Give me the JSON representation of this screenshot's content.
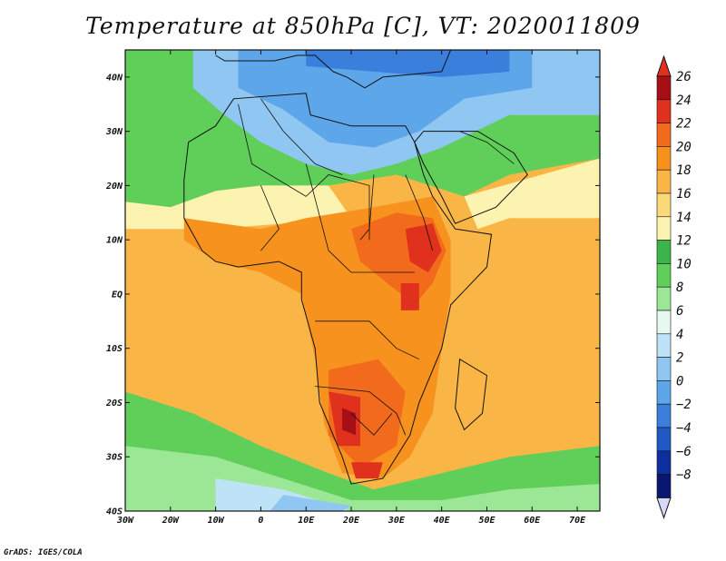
{
  "title": "Temperature at 850hPa [C], VT: 2020011809",
  "credit": "GrADS: IGES/COLA",
  "map": {
    "lon_range": [
      -30,
      75
    ],
    "lat_range": [
      -40,
      45
    ],
    "lat_ticks": [
      {
        "value": 40,
        "label": "40N"
      },
      {
        "value": 30,
        "label": "30N"
      },
      {
        "value": 20,
        "label": "20N"
      },
      {
        "value": 10,
        "label": "10N"
      },
      {
        "value": 0,
        "label": "EQ"
      },
      {
        "value": -10,
        "label": "10S"
      },
      {
        "value": -20,
        "label": "20S"
      },
      {
        "value": -30,
        "label": "30S"
      },
      {
        "value": -40,
        "label": "40S"
      }
    ],
    "lon_ticks": [
      {
        "value": -30,
        "label": "30W"
      },
      {
        "value": -20,
        "label": "20W"
      },
      {
        "value": -10,
        "label": "10W"
      },
      {
        "value": 0,
        "label": "0"
      },
      {
        "value": 10,
        "label": "10E"
      },
      {
        "value": 20,
        "label": "20E"
      },
      {
        "value": 30,
        "label": "30E"
      },
      {
        "value": 40,
        "label": "40E"
      },
      {
        "value": 50,
        "label": "50E"
      },
      {
        "value": 60,
        "label": "60E"
      },
      {
        "value": 70,
        "label": "70E"
      }
    ]
  },
  "colorbar": {
    "levels": [
      "26",
      "24",
      "22",
      "20",
      "18",
      "16",
      "14",
      "12",
      "10",
      "8",
      "6",
      "4",
      "2",
      "0",
      "−2",
      "−4",
      "−6",
      "−8"
    ],
    "colors": [
      "#a50f15",
      "#e0301e",
      "#f26a1b",
      "#f8921f",
      "#f9b646",
      "#fbd879",
      "#fdf3b0",
      "#3cb44b",
      "#5fcf5a",
      "#9be795",
      "#e6f8f0",
      "#bfe3f6",
      "#8fc7f2",
      "#5ea6ea",
      "#3a7fdc",
      "#2058c4",
      "#0d2f9e",
      "#0a1770"
    ],
    "top_cap_color": "#e0301e",
    "bottom_cap_color": "#d8d8f8"
  }
}
